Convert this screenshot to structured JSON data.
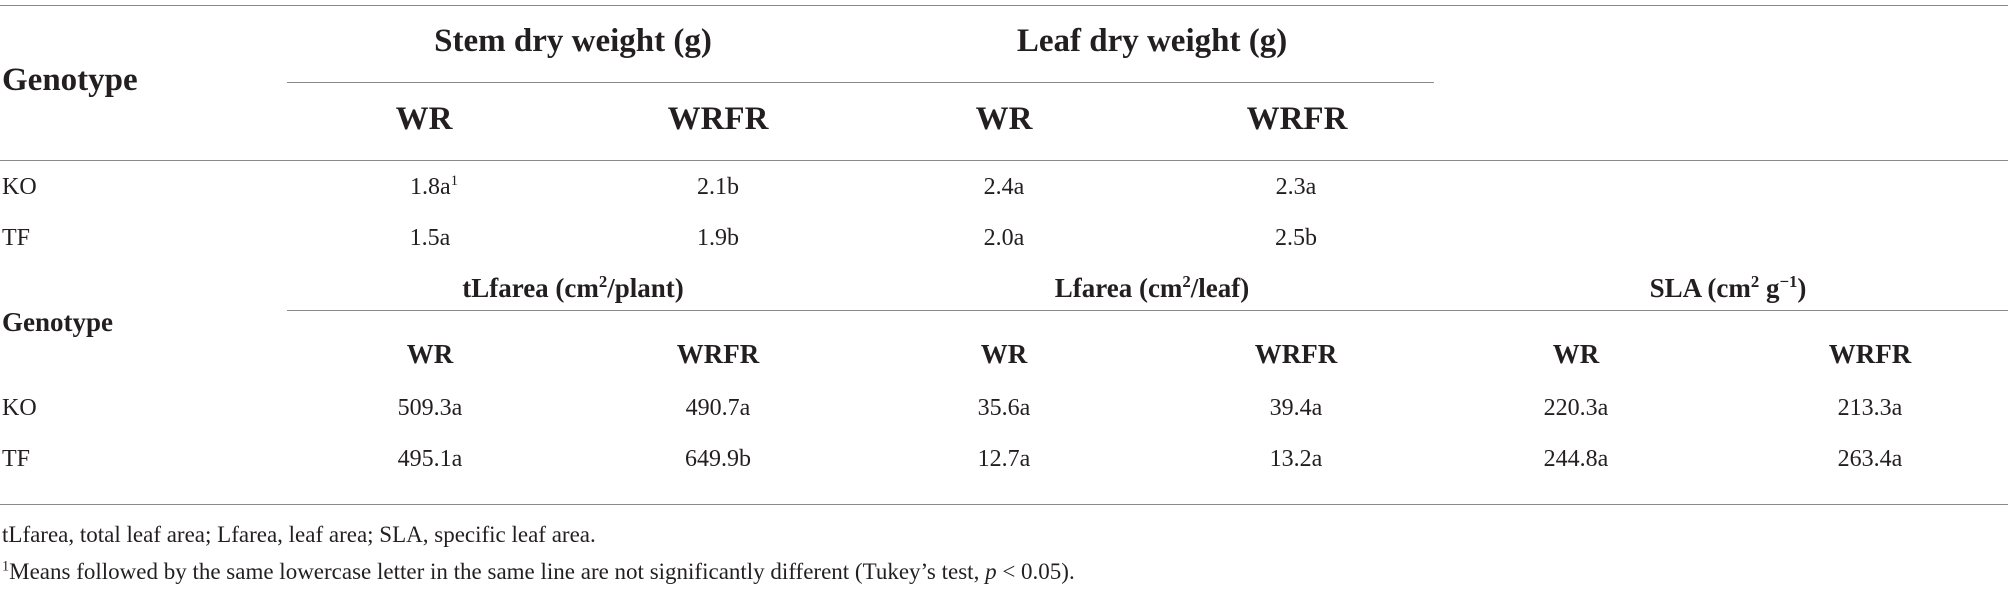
{
  "table1": {
    "genotype_header": "Genotype",
    "group_headers": [
      "Stem dry weight (g)",
      "Leaf dry weight (g)"
    ],
    "sub_headers": [
      "WR",
      "WRFR",
      "WR",
      "WRFR"
    ],
    "rows": [
      {
        "genotype": "KO",
        "cells": [
          "1.8a",
          "2.1b",
          "2.4a",
          "2.3a"
        ],
        "first_cell_sup": "1"
      },
      {
        "genotype": "TF",
        "cells": [
          "1.5a",
          "1.9b",
          "2.0a",
          "2.5b"
        ]
      }
    ]
  },
  "table2": {
    "genotype_header": "Genotype",
    "group_headers": [
      {
        "main": "tLfarea (cm",
        "sup": "2",
        "tail": "/plant)"
      },
      {
        "main": "Lfarea (cm",
        "sup": "2",
        "tail": "/leaf)"
      },
      {
        "main": "SLA (cm",
        "sup": "2",
        "mid": " g",
        "sup2": "−1",
        "tail": ")"
      }
    ],
    "sub_headers": [
      "WR",
      "WRFR",
      "WR",
      "WRFR",
      "WR",
      "WRFR"
    ],
    "rows": [
      {
        "genotype": "KO",
        "cells": [
          "509.3a",
          "490.7a",
          "35.6a",
          "39.4a",
          "220.3a",
          "213.3a"
        ]
      },
      {
        "genotype": "TF",
        "cells": [
          "495.1a",
          "649.9b",
          "12.7a",
          "13.2a",
          "244.8a",
          "263.4a"
        ]
      }
    ]
  },
  "footnotes": {
    "abbreviations": "tLfarea, total leaf area; Lfarea, leaf area; SLA, specific leaf area.",
    "note_marker": "1",
    "note_text_before": "Means followed by the same lowercase letter in the same line are not significantly different (Tukey’s test, ",
    "note_italic": "p",
    "note_text_after": " < 0.05)."
  }
}
